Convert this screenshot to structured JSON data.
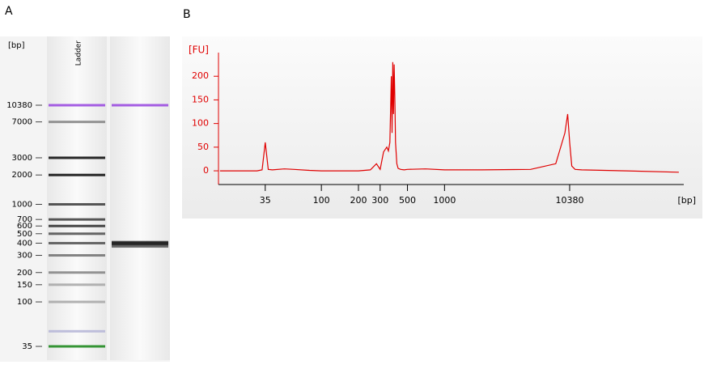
{
  "panel_labels": [
    "A",
    "B"
  ],
  "chart_data": [
    {
      "type": "gel",
      "ylabel": "[bp]",
      "ylim": [
        35,
        10380
      ],
      "log_scale": true,
      "yticks": [
        10380,
        7000,
        3000,
        2000,
        1000,
        700,
        600,
        500,
        400,
        300,
        200,
        150,
        100,
        35
      ],
      "lanes": [
        {
          "label": "Ladder",
          "bands": [
            10380,
            7000,
            3000,
            2000,
            1000,
            700,
            600,
            500,
            400,
            300,
            200,
            150,
            100,
            50,
            35
          ],
          "colors": [
            "#9b4de0",
            "#888888",
            "#111111",
            "#111111",
            "#444444",
            "#444444",
            "#333333",
            "#555555",
            "#555555",
            "#777777",
            "#888888",
            "#aaaaaa",
            "#aaaaaa",
            "#b8b8d8",
            "#1f8a1f"
          ]
        },
        {
          "label": null,
          "bands": [
            10380,
            410,
            400,
            390,
            380,
            370
          ],
          "colors": [
            "#9b4de0",
            "#333333",
            "#222222",
            "#222222",
            "#333333",
            "#666666"
          ]
        }
      ]
    },
    {
      "type": "line",
      "ylabel": "[FU]",
      "xlabel": "[bp]",
      "log_scale_x": true,
      "color": "#e00000",
      "xlim": [
        14.6,
        87700
      ],
      "ylim": [
        -29,
        250
      ],
      "xticks": [
        35,
        100,
        200,
        300,
        500,
        1000,
        10380
      ],
      "yticks": [
        0,
        50,
        100,
        150,
        200
      ],
      "series": [
        {
          "name": null,
          "color": "#e00000",
          "x": [
            15,
            30,
            33,
            35,
            37,
            40,
            50,
            60,
            80,
            100,
            150,
            200,
            250,
            280,
            300,
            320,
            340,
            350,
            360,
            370,
            375,
            380,
            385,
            390,
            395,
            400,
            410,
            420,
            440,
            470,
            500,
            700,
            1000,
            2000,
            5000,
            8000,
            9500,
            10000,
            10380,
            10800,
            11500,
            13000,
            30000,
            80000
          ],
          "values": [
            0,
            0,
            2,
            60,
            3,
            2,
            4,
            3,
            1,
            0,
            0,
            0,
            2,
            15,
            3,
            40,
            50,
            42,
            60,
            200,
            80,
            230,
            120,
            225,
            160,
            60,
            15,
            5,
            3,
            2,
            3,
            4,
            2,
            2,
            3,
            15,
            80,
            120,
            60,
            10,
            3,
            2,
            0,
            -3
          ]
        }
      ]
    }
  ]
}
